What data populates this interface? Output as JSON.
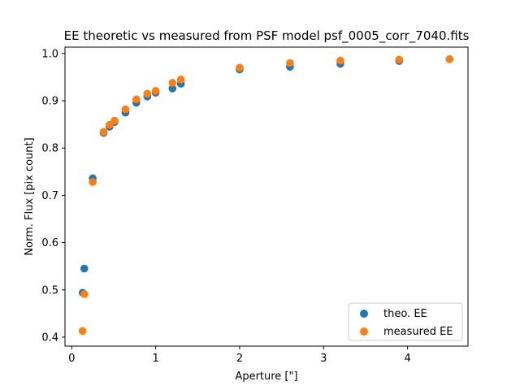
{
  "chart_data": {
    "type": "scatter",
    "title": "EE theoretic vs measured from PSF model psf_0005_corr_7040.fits",
    "xlabel": "Aperture [\"]",
    "ylabel": "Norm. Flux [pix count]",
    "xlim": [
      -0.08,
      4.72
    ],
    "ylim": [
      0.381,
      1.0135
    ],
    "xticks": [
      0,
      1,
      2,
      3,
      4
    ],
    "xtick_labels": [
      "0",
      "1",
      "2",
      "3",
      "4"
    ],
    "yticks": [
      0.4,
      0.5,
      0.6,
      0.7,
      0.8,
      0.9,
      1.0
    ],
    "ytick_labels": [
      "0.4",
      "0.5",
      "0.6",
      "0.7",
      "0.8",
      "0.9",
      "1.0"
    ],
    "grid": false,
    "legend_position": "lower-right",
    "series": [
      {
        "name": "theo. EE",
        "color": "#1f77b4",
        "x": [
          0.13,
          0.15,
          0.25,
          0.38,
          0.45,
          0.51,
          0.64,
          0.77,
          0.9,
          1.0,
          1.2,
          1.3,
          2.0,
          2.6,
          3.2,
          3.9,
          4.5
        ],
        "y": [
          0.494,
          0.545,
          0.736,
          0.832,
          0.845,
          0.855,
          0.875,
          0.896,
          0.909,
          0.917,
          0.926,
          0.936,
          0.966,
          0.972,
          0.978,
          0.984,
          0.988
        ]
      },
      {
        "name": "measured EE",
        "color": "#ff7f0e",
        "x": [
          0.13,
          0.15,
          0.25,
          0.38,
          0.45,
          0.51,
          0.64,
          0.77,
          0.9,
          1.0,
          1.2,
          1.3,
          2.0,
          2.6,
          3.2,
          3.9,
          4.5
        ],
        "y": [
          0.413,
          0.491,
          0.728,
          0.834,
          0.849,
          0.858,
          0.882,
          0.903,
          0.915,
          0.921,
          0.938,
          0.945,
          0.97,
          0.98,
          0.985,
          0.987,
          0.988
        ]
      }
    ]
  }
}
